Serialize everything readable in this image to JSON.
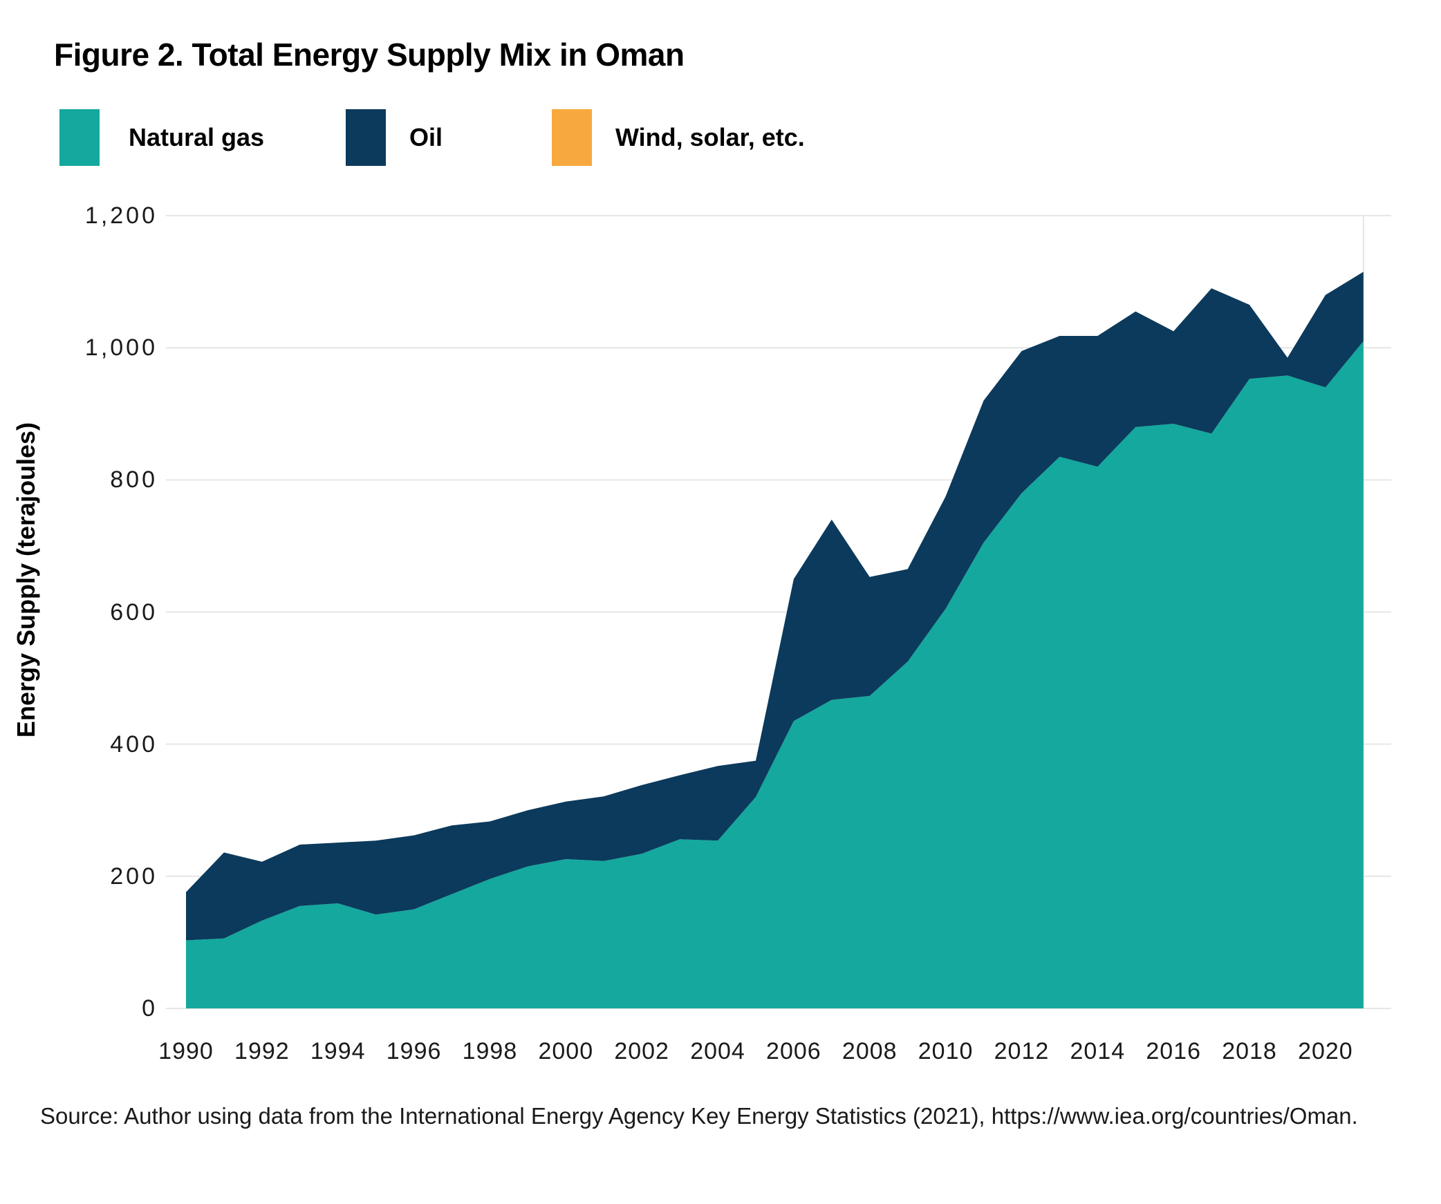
{
  "figure": {
    "title": "Figure 2. Total Energy Supply Mix in Oman",
    "source": "Source: Author using data from the International Energy Agency Key Energy Statistics (2021), https://www.iea.org/countries/Oman."
  },
  "legend": [
    {
      "label": "Natural gas",
      "color": "#14A89E"
    },
    {
      "label": "Oil",
      "color": "#0B3A5C"
    },
    {
      "label": "Wind, solar, etc.",
      "color": "#F7A83E"
    }
  ],
  "chart_data": {
    "type": "area",
    "stacked": true,
    "title": "Figure 2. Total Energy Supply Mix in Oman",
    "xlabel": "",
    "ylabel": "Energy Supply (terajoules)",
    "ylim": [
      0,
      1200
    ],
    "grid": "horizontal",
    "legend_position": "top-left",
    "x": [
      1990,
      1991,
      1992,
      1993,
      1994,
      1995,
      1996,
      1997,
      1998,
      1999,
      2000,
      2001,
      2002,
      2003,
      2004,
      2005,
      2006,
      2007,
      2008,
      2009,
      2010,
      2011,
      2012,
      2013,
      2014,
      2015,
      2016,
      2017,
      2018,
      2019,
      2020,
      2021
    ],
    "series": [
      {
        "name": "Natural gas",
        "color": "#14A89E",
        "values": [
          103,
          106,
          133,
          155,
          159,
          142,
          150,
          173,
          196,
          215,
          226,
          223,
          234,
          256,
          254,
          320,
          435,
          467,
          473,
          525,
          605,
          705,
          780,
          835,
          820,
          880,
          885,
          870,
          953,
          958,
          940,
          1010
        ]
      },
      {
        "name": "Oil",
        "color": "#0B3A5C",
        "values": [
          73,
          130,
          89,
          93,
          92,
          112,
          112,
          104,
          87,
          85,
          87,
          98,
          104,
          97,
          113,
          55,
          215,
          273,
          180,
          140,
          170,
          215,
          215,
          183,
          198,
          175,
          140,
          220,
          112,
          27,
          140,
          105
        ]
      },
      {
        "name": "Wind, solar, etc.",
        "color": "#F7A83E",
        "values": [
          0,
          0,
          0,
          0,
          0,
          0,
          0,
          0,
          0,
          0,
          0,
          0,
          0,
          0,
          0,
          0,
          0,
          0,
          0,
          0,
          0,
          0,
          0,
          0,
          0,
          0,
          0,
          0,
          0,
          0,
          0,
          0
        ]
      }
    ],
    "y_axis": {
      "ticks": [
        {
          "label": "0",
          "value": 0
        },
        {
          "label": "200",
          "value": 200
        },
        {
          "label": "400",
          "value": 400
        },
        {
          "label": "600",
          "value": 600
        },
        {
          "label": "800",
          "value": 800
        },
        {
          "label": "1,000",
          "value": 1000
        },
        {
          "label": "1,200",
          "value": 1200
        }
      ]
    },
    "x_axis": {
      "ticks": [
        {
          "label": "1990",
          "value": 1990
        },
        {
          "label": "1992",
          "value": 1992
        },
        {
          "label": "1994",
          "value": 1994
        },
        {
          "label": "1996",
          "value": 1996
        },
        {
          "label": "1998",
          "value": 1998
        },
        {
          "label": "2000",
          "value": 2000
        },
        {
          "label": "2002",
          "value": 2002
        },
        {
          "label": "2004",
          "value": 2004
        },
        {
          "label": "2006",
          "value": 2006
        },
        {
          "label": "2008",
          "value": 2008
        },
        {
          "label": "2010",
          "value": 2010
        },
        {
          "label": "2012",
          "value": 2012
        },
        {
          "label": "2014",
          "value": 2014
        },
        {
          "label": "2016",
          "value": 2016
        },
        {
          "label": "2018",
          "value": 2018
        },
        {
          "label": "2020",
          "value": 2020
        }
      ]
    }
  },
  "style": {
    "gridline_color": "#E6E6E6",
    "background": "#FFFFFF"
  }
}
